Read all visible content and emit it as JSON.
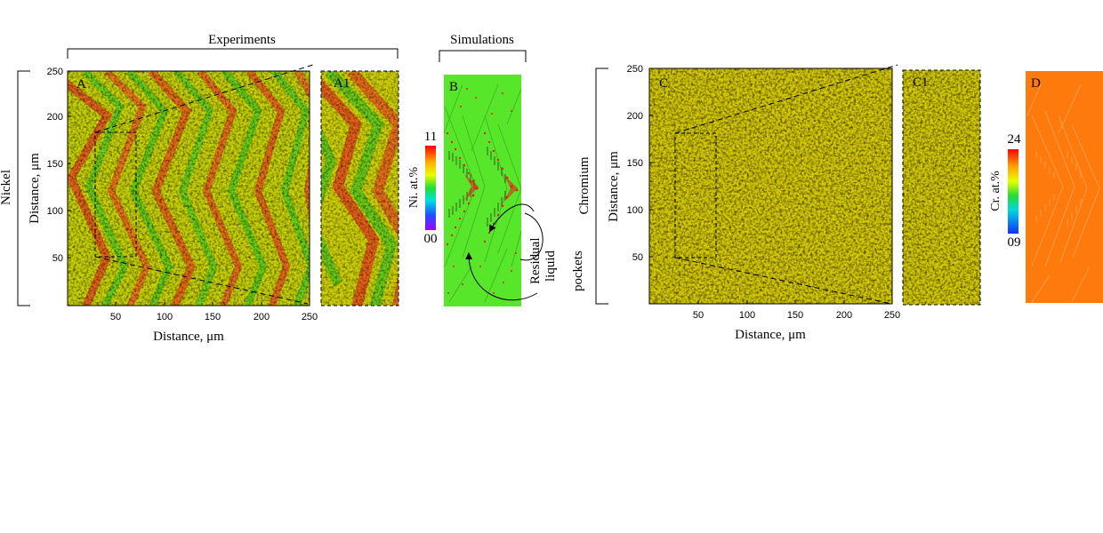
{
  "headers": {
    "experiments": "Experiments",
    "simulations": "Simulations"
  },
  "rows": {
    "nickel": "Nickel",
    "chromium": "Chromium"
  },
  "panels": {
    "a": "A",
    "a1": "A1",
    "b": "B",
    "c": "C",
    "c1": "C1",
    "d": "D"
  },
  "axes": {
    "xlabel": "Distance, μm",
    "ylabel": "Distance, μm",
    "x_ticks": [
      "50",
      "100",
      "150",
      "200",
      "250"
    ],
    "y_ticks": [
      "50",
      "100",
      "150",
      "200",
      "250"
    ]
  },
  "colorbars": {
    "ni": {
      "label": "Ni. at.%",
      "max": "11",
      "min": "00"
    },
    "cr": {
      "label": "Cr. at.%",
      "max": "24",
      "min": "09"
    }
  },
  "annotation": {
    "line1": "Residual",
    "line2": "liquid",
    "line3": "pockets"
  },
  "colors": {
    "map_green": "#7fd21e",
    "map_yellow": "#d6d600",
    "map_orange": "#f07a1c",
    "map_red": "#e6401e",
    "sim_green": "#5ee82a",
    "sim_red": "#e8201c",
    "cr_orange": "#ff7a0c"
  }
}
